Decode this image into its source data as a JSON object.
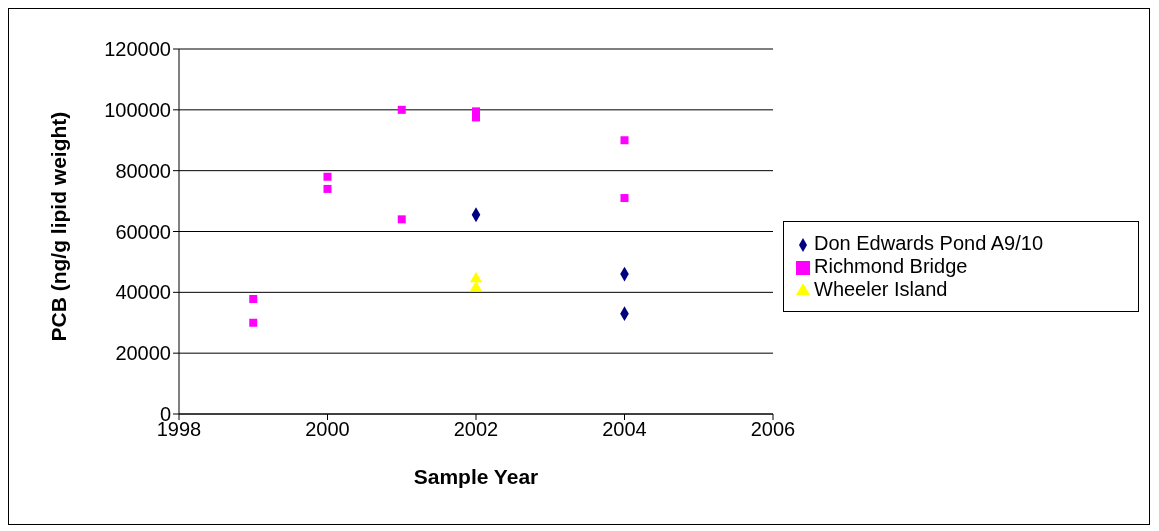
{
  "chart_data": {
    "type": "scatter",
    "xlabel": "Sample Year",
    "ylabel": "PCB (ng/g lipid weight)",
    "xlim": [
      1998,
      2006
    ],
    "xticks": [
      1998,
      2000,
      2002,
      2004,
      2006
    ],
    "ylim": [
      0,
      120000
    ],
    "yticks": [
      0,
      20000,
      40000,
      60000,
      80000,
      100000,
      120000
    ],
    "grid": "y",
    "legend": "right",
    "series": [
      {
        "name": "Don Edwards Pond A9/10",
        "color": "#000080",
        "marker": "diamond",
        "x": [
          2002,
          2004,
          2004
        ],
        "values": [
          65500,
          46000,
          33000
        ]
      },
      {
        "name": "Richmond Bridge",
        "color": "#ff00ff",
        "marker": "square",
        "x": [
          1999,
          1999,
          2000,
          2000,
          2001,
          2001,
          2002,
          2002,
          2004,
          2004
        ],
        "values": [
          37800,
          30000,
          78000,
          74000,
          100000,
          64000,
          99500,
          97500,
          90000,
          71000
        ]
      },
      {
        "name": "Wheeler Island",
        "color": "#ffff00",
        "marker": "triangle",
        "x": [
          2002,
          2002
        ],
        "values": [
          44500,
          41500
        ]
      }
    ]
  }
}
